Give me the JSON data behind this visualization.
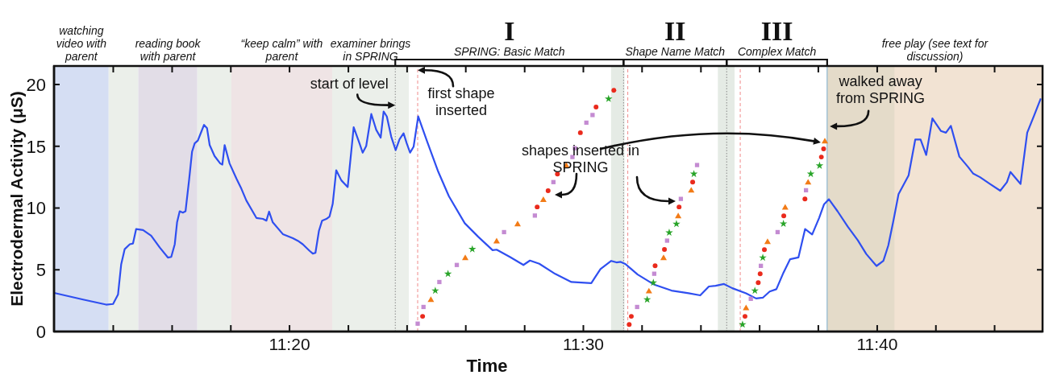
{
  "chart_data": {
    "type": "line",
    "ylabel": "Electrodermal Activity (μS)",
    "xlabel": "Time",
    "xlim": [
      11.1997,
      11.7605
    ],
    "ylim": [
      0,
      21.5
    ],
    "yticks": [
      0,
      5,
      10,
      15,
      20
    ],
    "xticks": [
      {
        "value": 11.2333,
        "label": null
      },
      {
        "value": 11.2667,
        "label": null
      },
      {
        "value": 11.3,
        "label": null
      },
      {
        "value": 11.3333,
        "label": "11:20"
      },
      {
        "value": 11.3667,
        "label": null
      },
      {
        "value": 11.4,
        "label": null
      },
      {
        "value": 11.4333,
        "label": null
      },
      {
        "value": 11.4667,
        "label": null
      },
      {
        "value": 11.5,
        "label": "11:30"
      },
      {
        "value": 11.5333,
        "label": null
      },
      {
        "value": 11.5667,
        "label": null
      },
      {
        "value": 11.6,
        "label": null
      },
      {
        "value": 11.6333,
        "label": null
      },
      {
        "value": 11.6667,
        "label": "11:40"
      },
      {
        "value": 11.7,
        "label": null
      },
      {
        "value": 11.7333,
        "label": null
      }
    ],
    "series": [
      {
        "color": "#2f4ff0",
        "marker": "none",
        "line_style": "solid",
        "x": [
          11.1998,
          11.2162,
          11.2293,
          11.2332,
          11.236,
          11.2378,
          11.2398,
          11.2427,
          11.2445,
          11.2463,
          11.2502,
          11.2548,
          11.2597,
          11.2643,
          11.2662,
          11.2682,
          11.2695,
          11.271,
          11.2728,
          11.2743,
          11.2763,
          11.278,
          11.2795,
          11.2813,
          11.2833,
          11.2848,
          11.2865,
          11.288,
          11.2908,
          11.294,
          11.2952,
          11.2965,
          11.2993,
          11.3032,
          11.306,
          11.3088,
          11.3145,
          11.3182,
          11.3202,
          11.3217,
          11.3238,
          11.3295,
          11.3352,
          11.338,
          11.3408,
          11.3447,
          11.3465,
          11.348,
          11.35,
          11.3518,
          11.3542,
          11.356,
          11.3578,
          11.3598,
          11.3627,
          11.3663,
          11.3697,
          11.373,
          11.3748,
          11.3768,
          11.3797,
          11.3825,
          11.385,
          11.3867,
          11.3885,
          11.391,
          11.3935,
          11.3957,
          11.398,
          11.3998,
          11.4017,
          11.4037,
          11.4063,
          11.4115,
          11.4177,
          11.4237,
          11.4327,
          11.4403,
          11.4485,
          11.4508,
          11.4583,
          11.466,
          11.4697,
          11.475,
          11.484,
          11.4932,
          11.5045,
          11.5067,
          11.5097,
          11.5158,
          11.5188,
          11.5212,
          11.524,
          11.5308,
          11.5403,
          11.55,
          11.5597,
          11.5663,
          11.5712,
          11.575,
          11.5798,
          11.5845,
          11.5923,
          11.598,
          11.6018,
          11.6057,
          11.6095,
          11.6135,
          11.6173,
          11.622,
          11.6258,
          11.6298,
          11.6337,
          11.6365,
          11.6393,
          11.6442,
          11.65,
          11.6557,
          11.6605,
          11.6663,
          11.6702,
          11.673,
          11.6758,
          11.6788,
          11.6845,
          11.6883,
          11.6913,
          11.6945,
          11.698,
          11.7028,
          11.7057,
          11.7085,
          11.7133,
          11.7182,
          11.7212,
          11.725,
          11.7307,
          11.7365,
          11.7403,
          11.7423,
          11.748,
          11.7518,
          11.7557,
          11.7595
        ],
        "values": [
          3.13,
          2.59,
          2.18,
          2.23,
          2.99,
          5.44,
          6.67,
          7.07,
          7.13,
          8.3,
          8.22,
          7.76,
          6.8,
          5.99,
          6.04,
          7.07,
          8.84,
          9.74,
          9.63,
          9.74,
          12.24,
          14.56,
          15.24,
          15.46,
          16.19,
          16.73,
          16.46,
          15.1,
          14.2,
          13.61,
          13.52,
          15.1,
          13.61,
          12.38,
          11.56,
          10.61,
          9.2,
          9.12,
          8.98,
          9.71,
          8.84,
          7.89,
          7.56,
          7.35,
          7.07,
          6.53,
          6.31,
          6.37,
          8.16,
          8.98,
          9.12,
          9.31,
          10.34,
          13.06,
          12.24,
          11.7,
          16.54,
          15.24,
          14.48,
          15.02,
          17.61,
          16.33,
          15.7,
          17.82,
          17.41,
          15.78,
          14.69,
          15.56,
          16.05,
          15.24,
          14.48,
          14.97,
          17.42,
          15.33,
          12.93,
          10.96,
          8.77,
          7.68,
          6.59,
          6.63,
          6.04,
          5.39,
          5.75,
          5.49,
          4.67,
          4.01,
          3.92,
          4.4,
          5.06,
          5.72,
          5.6,
          5.64,
          5.45,
          4.62,
          3.79,
          3.32,
          3.1,
          2.93,
          3.65,
          3.71,
          3.85,
          3.51,
          3.1,
          2.68,
          2.74,
          3.24,
          3.43,
          4.76,
          5.86,
          6.0,
          8.3,
          7.86,
          9.18,
          10.29,
          10.71,
          9.74,
          8.49,
          7.39,
          6.28,
          5.31,
          5.73,
          6.97,
          8.91,
          11.12,
          12.64,
          15.55,
          15.55,
          14.3,
          17.26,
          16.24,
          16.1,
          16.65,
          14.16,
          13.33,
          12.78,
          12.5,
          11.95,
          11.4,
          12.09,
          12.92,
          11.95,
          16.1,
          17.48,
          18.87
        ]
      },
      {
        "type": "scatter",
        "color": "#ea2a1c",
        "marker": "circle",
        "x": [
          11.4088,
          11.4738,
          11.48,
          11.4853,
          11.4983,
          11.5072,
          11.5173,
          11.526,
          11.5272,
          11.5407,
          11.546,
          11.5543,
          11.562,
          11.5917,
          11.5992,
          11.6003,
          11.6027,
          11.6137,
          11.6257,
          11.635,
          11.6363
        ],
        "values": [
          1.23,
          10.09,
          11.4,
          12.76,
          16.1,
          18.18,
          19.53,
          0.57,
          1.23,
          5.32,
          6.65,
          10.09,
          12.1,
          1.23,
          3.96,
          4.67,
          6.63,
          9.36,
          10.74,
          14.13,
          14.79
        ]
      },
      {
        "type": "scatter",
        "color": "#c48bd2",
        "marker": "square",
        "x": [
          11.406,
          11.4093,
          11.4183,
          11.4282,
          11.455,
          11.4725,
          11.483,
          11.4938,
          11.4952,
          11.5017,
          11.5052,
          11.5305,
          11.5402,
          11.5475,
          11.5553,
          11.5645,
          11.595,
          11.6007,
          11.6102,
          11.6263
        ],
        "values": [
          0.64,
          1.99,
          4.01,
          5.39,
          8.05,
          9.39,
          12.1,
          14.13,
          14.84,
          16.91,
          17.53,
          1.99,
          4.68,
          7.36,
          10.74,
          13.48,
          2.65,
          5.32,
          8.05,
          11.44
        ]
      },
      {
        "type": "scatter",
        "color": "#f27b16",
        "marker": "triangle",
        "x": [
          11.4135,
          11.433,
          11.4508,
          11.4627,
          11.4773,
          11.4903,
          11.5372,
          11.5455,
          11.5538,
          11.5612,
          11.5923,
          11.6045,
          11.6145,
          11.6275,
          11.637
        ],
        "values": [
          2.54,
          5.93,
          7.29,
          8.67,
          10.64,
          13.41,
          3.24,
          5.93,
          9.32,
          11.4,
          1.88,
          7.24,
          10.02,
          12.05,
          15.38
        ]
      },
      {
        "type": "scatter",
        "color": "#28a428",
        "marker": "star",
        "x": [
          11.416,
          11.4232,
          11.437,
          11.5143,
          11.5362,
          11.5397,
          11.5487,
          11.5528,
          11.5627,
          11.5903,
          11.5973,
          11.6018,
          11.6135,
          11.629,
          11.634
        ],
        "values": [
          3.31,
          4.67,
          6.67,
          18.84,
          2.59,
          3.96,
          8.01,
          8.71,
          12.76,
          0.57,
          3.31,
          5.98,
          8.73,
          12.76,
          13.43
        ]
      }
    ],
    "bands": [
      {
        "axis": "x",
        "from": 11.1997,
        "to": 11.2307,
        "color": "#d5def3",
        "label": "watching video with parent"
      },
      {
        "axis": "x",
        "from": 11.2307,
        "to": 11.2475,
        "color": "#ebefea"
      },
      {
        "axis": "x",
        "from": 11.2475,
        "to": 11.281,
        "color": "#e2dde7",
        "label": "reading book with parent"
      },
      {
        "axis": "x",
        "from": 11.281,
        "to": 11.3003,
        "color": "#ebefea"
      },
      {
        "axis": "x",
        "from": 11.3003,
        "to": 11.3575,
        "color": "#efe4e5",
        "label": "“keep calm” with parent"
      },
      {
        "axis": "x",
        "from": 11.3575,
        "to": 11.401,
        "color": "#ebefea",
        "label": "examiner brings in SPRING"
      },
      {
        "axis": "x",
        "from": 11.5157,
        "to": 11.5233,
        "color": "#e5ebe5"
      },
      {
        "axis": "x",
        "from": 11.5763,
        "to": 11.5858,
        "color": "#e5ebe5"
      },
      {
        "axis": "x",
        "from": 11.6383,
        "to": 11.7605,
        "color": "#f2e3d3",
        "label": "free play (see text for discussion)"
      },
      {
        "axis": "x",
        "from": 11.6383,
        "to": 11.6765,
        "color": "#e4dbc9"
      }
    ],
    "ref_lines": [
      {
        "axis": "x",
        "value": 11.3933,
        "color": "#888888",
        "line_style": "dotted"
      },
      {
        "axis": "x",
        "value": 11.406,
        "color": "#f08a8a",
        "line_style": "dashed"
      },
      {
        "axis": "x",
        "value": 11.5228,
        "color": "#888888",
        "line_style": "dotted"
      },
      {
        "axis": "x",
        "value": 11.5252,
        "color": "#f08a8a",
        "line_style": "dashed"
      },
      {
        "axis": "x",
        "value": 11.5813,
        "color": "#888888",
        "line_style": "dotted"
      },
      {
        "axis": "x",
        "value": 11.589,
        "color": "#f08a8a",
        "line_style": "dashed"
      },
      {
        "axis": "x",
        "value": 11.6383,
        "color": "#7aaed0",
        "line_style": "solid"
      }
    ],
    "annotations": [
      "I",
      "SPRING: Basic Match",
      "II",
      "Shape Name Match",
      "III",
      "Complex Match",
      {
        "text": "start of level",
        "x": 11.3933,
        "y": 18.33
      },
      {
        "text": "first shape inserted",
        "x": 11.406,
        "y": 21.16
      },
      "shapes inserted in SPRING",
      {
        "text": "walked away from SPRING",
        "x": 11.6398,
        "y": 16.62
      }
    ]
  }
}
